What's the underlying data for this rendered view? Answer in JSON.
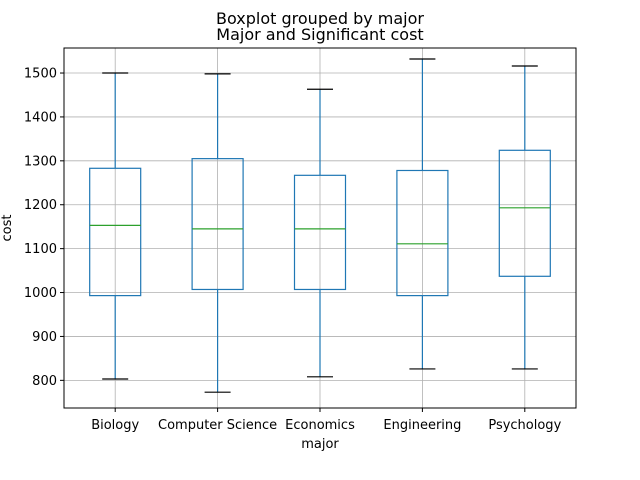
{
  "chart_data": {
    "type": "boxplot",
    "suptitle": "Boxplot grouped by major",
    "title": "Major and Significant cost",
    "xlabel": "major",
    "ylabel": "cost",
    "ylim": [
      737,
      1557
    ],
    "yticks": [
      800,
      900,
      1000,
      1100,
      1200,
      1300,
      1400,
      1500
    ],
    "grid": true,
    "categories": [
      "Biology",
      "Computer Science",
      "Economics",
      "Engineering",
      "Psychology"
    ],
    "boxes": [
      {
        "category": "Biology",
        "whisker_low": 803,
        "q1": 993,
        "median": 1153,
        "q3": 1283,
        "whisker_high": 1500
      },
      {
        "category": "Computer Science",
        "whisker_low": 773,
        "q1": 1007,
        "median": 1145,
        "q3": 1305,
        "whisker_high": 1498
      },
      {
        "category": "Economics",
        "whisker_low": 808,
        "q1": 1007,
        "median": 1145,
        "q3": 1267,
        "whisker_high": 1463
      },
      {
        "category": "Engineering",
        "whisker_low": 826,
        "q1": 993,
        "median": 1111,
        "q3": 1278,
        "whisker_high": 1532
      },
      {
        "category": "Psychology",
        "whisker_low": 826,
        "q1": 1037,
        "median": 1193,
        "q3": 1324,
        "whisker_high": 1516
      }
    ],
    "colors": {
      "box": "#1f77b4",
      "median": "#2ca02c",
      "cap": "#000000",
      "grid": "#b0b0b0"
    }
  }
}
